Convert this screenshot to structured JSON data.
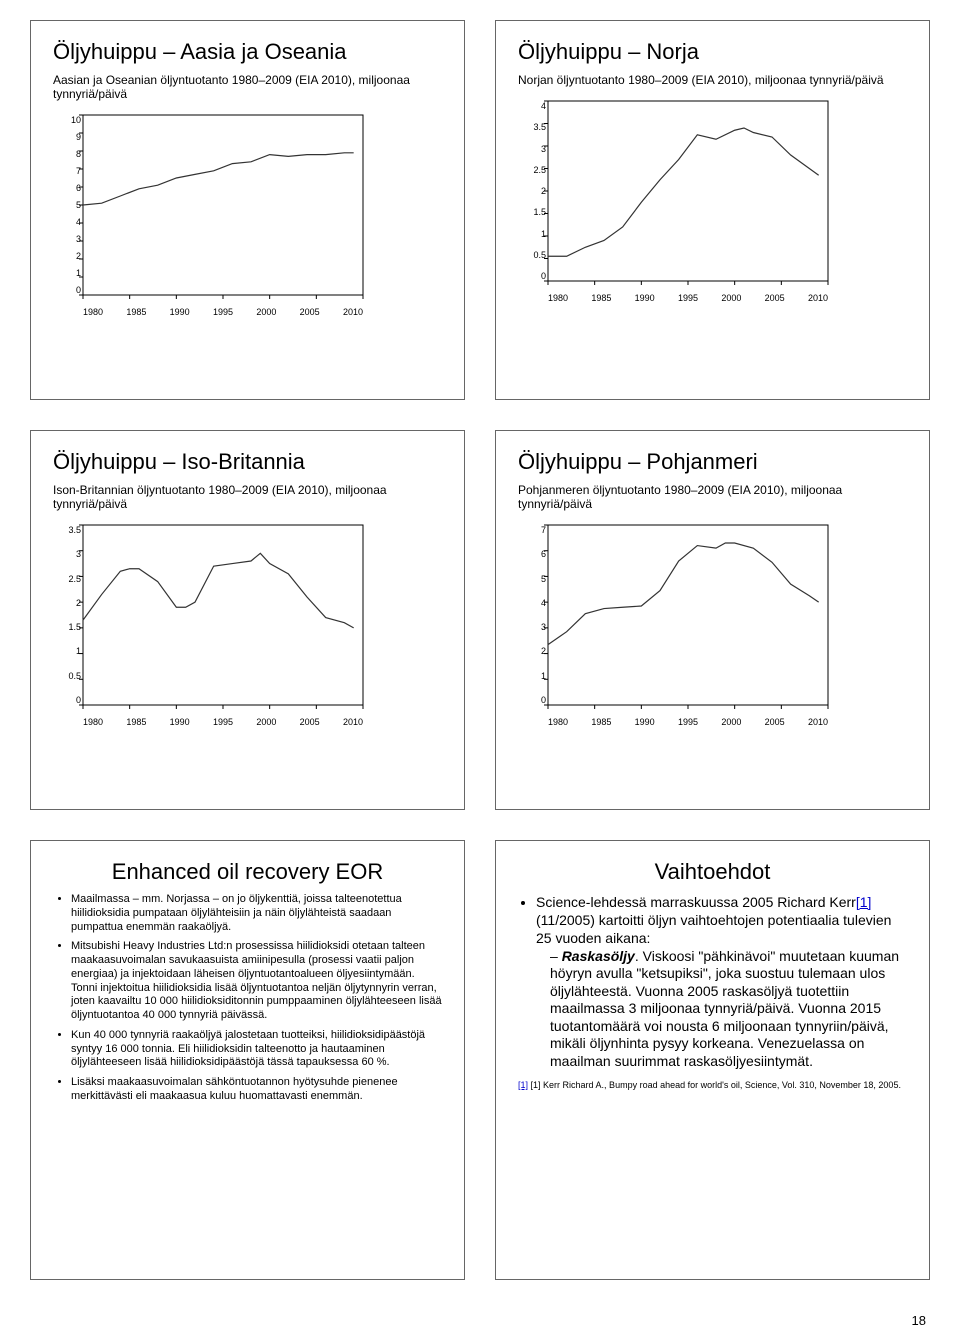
{
  "page_number": "18",
  "slides": {
    "asia": {
      "title": "Öljyhuippu – Aasia ja Oseania",
      "subtitle": "Aasian ja Oseanian öljyntuotanto 1980–2009 (EIA 2010), miljoonaa tynnyriä/päivä",
      "chart": {
        "type": "line",
        "xmin": 1980,
        "xmax": 2010,
        "ymin": 0,
        "ymax": 10,
        "xticks": [
          "1980",
          "1985",
          "1990",
          "1995",
          "2000",
          "2005",
          "2010"
        ],
        "yticks": [
          "0",
          "1",
          "2",
          "3",
          "4",
          "5",
          "6",
          "7",
          "8",
          "9",
          "10"
        ],
        "line_color": "#333333",
        "line_width": 1.2,
        "grid_color": "#000000",
        "background_color": "#ffffff",
        "tick_fontsize": 9,
        "data": [
          [
            1980,
            5.0
          ],
          [
            1982,
            5.1
          ],
          [
            1984,
            5.5
          ],
          [
            1986,
            5.9
          ],
          [
            1988,
            6.1
          ],
          [
            1990,
            6.5
          ],
          [
            1992,
            6.7
          ],
          [
            1994,
            6.9
          ],
          [
            1996,
            7.3
          ],
          [
            1998,
            7.4
          ],
          [
            2000,
            7.8
          ],
          [
            2002,
            7.7
          ],
          [
            2004,
            7.8
          ],
          [
            2006,
            7.8
          ],
          [
            2008,
            7.9
          ],
          [
            2009,
            7.9
          ]
        ]
      }
    },
    "norway": {
      "title": "Öljyhuippu – Norja",
      "subtitle": "Norjan öljyntuotanto 1980–2009 (EIA 2010), miljoonaa tynnyriä/päivä",
      "chart": {
        "type": "line",
        "xmin": 1980,
        "xmax": 2010,
        "ymin": 0,
        "ymax": 4,
        "xticks": [
          "1980",
          "1985",
          "1990",
          "1995",
          "2000",
          "2005",
          "2010"
        ],
        "yticks": [
          "0",
          "0.5",
          "1",
          "1.5",
          "2",
          "2.5",
          "3",
          "3.5",
          "4"
        ],
        "line_color": "#333333",
        "line_width": 1.2,
        "grid_color": "#000000",
        "background_color": "#ffffff",
        "tick_fontsize": 9,
        "data": [
          [
            1980,
            0.55
          ],
          [
            1982,
            0.55
          ],
          [
            1984,
            0.75
          ],
          [
            1986,
            0.9
          ],
          [
            1988,
            1.2
          ],
          [
            1990,
            1.75
          ],
          [
            1992,
            2.25
          ],
          [
            1994,
            2.7
          ],
          [
            1996,
            3.25
          ],
          [
            1998,
            3.15
          ],
          [
            2000,
            3.35
          ],
          [
            2001,
            3.4
          ],
          [
            2002,
            3.3
          ],
          [
            2004,
            3.2
          ],
          [
            2006,
            2.8
          ],
          [
            2008,
            2.5
          ],
          [
            2009,
            2.35
          ]
        ]
      }
    },
    "uk": {
      "title": "Öljyhuippu – Iso-Britannia",
      "subtitle": "Ison-Britannian öljyntuotanto 1980–2009 (EIA 2010), miljoonaa tynnyriä/päivä",
      "chart": {
        "type": "line",
        "xmin": 1980,
        "xmax": 2010,
        "ymin": 0,
        "ymax": 3.5,
        "xticks": [
          "1980",
          "1985",
          "1990",
          "1995",
          "2000",
          "2005",
          "2010"
        ],
        "yticks": [
          "0",
          "0.5",
          "1",
          "1.5",
          "2",
          "2.5",
          "3",
          "3.5"
        ],
        "line_color": "#333333",
        "line_width": 1.2,
        "grid_color": "#000000",
        "background_color": "#ffffff",
        "tick_fontsize": 9,
        "data": [
          [
            1980,
            1.65
          ],
          [
            1982,
            2.15
          ],
          [
            1984,
            2.6
          ],
          [
            1985,
            2.65
          ],
          [
            1986,
            2.65
          ],
          [
            1988,
            2.4
          ],
          [
            1990,
            1.9
          ],
          [
            1991,
            1.9
          ],
          [
            1992,
            2.0
          ],
          [
            1994,
            2.7
          ],
          [
            1996,
            2.75
          ],
          [
            1998,
            2.8
          ],
          [
            1999,
            2.95
          ],
          [
            2000,
            2.75
          ],
          [
            2002,
            2.55
          ],
          [
            2004,
            2.1
          ],
          [
            2006,
            1.7
          ],
          [
            2008,
            1.6
          ],
          [
            2009,
            1.5
          ]
        ]
      }
    },
    "northsea": {
      "title": "Öljyhuippu – Pohjanmeri",
      "subtitle": "Pohjanmeren öljyntuotanto 1980–2009 (EIA 2010), miljoonaa tynnyriä/päivä",
      "chart": {
        "type": "line",
        "xmin": 1980,
        "xmax": 2010,
        "ymin": 0,
        "ymax": 7,
        "xticks": [
          "1980",
          "1985",
          "1990",
          "1995",
          "2000",
          "2005",
          "2010"
        ],
        "yticks": [
          "0",
          "1",
          "2",
          "3",
          "4",
          "5",
          "6",
          "7"
        ],
        "line_color": "#333333",
        "line_width": 1.2,
        "grid_color": "#000000",
        "background_color": "#ffffff",
        "tick_fontsize": 9,
        "data": [
          [
            1980,
            2.35
          ],
          [
            1982,
            2.85
          ],
          [
            1984,
            3.55
          ],
          [
            1986,
            3.75
          ],
          [
            1988,
            3.8
          ],
          [
            1990,
            3.85
          ],
          [
            1992,
            4.45
          ],
          [
            1994,
            5.6
          ],
          [
            1996,
            6.2
          ],
          [
            1998,
            6.1
          ],
          [
            1999,
            6.3
          ],
          [
            2000,
            6.3
          ],
          [
            2002,
            6.1
          ],
          [
            2004,
            5.55
          ],
          [
            2006,
            4.7
          ],
          [
            2008,
            4.25
          ],
          [
            2009,
            4.0
          ]
        ]
      }
    },
    "eor": {
      "title": "Enhanced oil recovery EOR",
      "bullets": [
        "Maailmassa – mm. Norjassa – on jo öljykenttiä, joissa talteenotettua hiilidioksidia pumpataan öljylähteisiin ja näin öljylähteistä saadaan pumpattua enemmän raakaöljyä.",
        "Mitsubishi Heavy Industries Ltd:n prosessissa hiilidioksidi otetaan talteen maakaasuvoimalan savukaasuista amiinipesulla (prosessi vaatii paljon energiaa) ja injektoidaan läheisen öljyntuotantoalueen öljyesiintymään. Tonni injektoitua hiilidioksidia lisää öljyntuotantoa neljän öljytynnyrin verran, joten kaavailtu 10 000 hiilidioksiditonnin pumppaaminen öljylähteeseen lisää öljyntuotantoa 40 000 tynnyriä päivässä.",
        "Kun 40 000 tynnyriä raakaöljyä jalostetaan tuotteiksi, hiilidioksidipäästöjä syntyy 16 000 tonnia. Eli hiilidioksidin talteenotto ja hautaaminen öljylähteeseen lisää hiilidioksidipäästöjä tässä tapauksessa 60 %.",
        "Lisäksi maakaasuvoimalan sähköntuotannon hyötysuhde pienenee merkittävästi eli maakaasua kuluu huomattavasti enemmän."
      ]
    },
    "alternatives": {
      "title": "Vaihtoehdot",
      "lead_pre": "Science-lehdessä marraskuussa 2005 Richard Kerr",
      "lead_link": "[1]",
      "lead_post": " (11/2005) kartoitti öljyn vaihtoehtojen potentiaalia tulevien 25 vuoden aikana:",
      "sub_item_label": "Raskasöljy",
      "sub_item_text": ". Viskoosi \"pähkinävoi\" muutetaan kuuman höyryn avulla \"ketsupiksi\", joka suostuu tulemaan ulos öljylähteestä. Vuonna 2005 raskasöljyä tuotettiin maailmassa 3 miljoonaa tynnyriä/päivä. Vuonna 2015 tuotantomäärä voi nousta 6 miljoonaan tynnyriin/päivä, mikäli öljynhinta pysyy korkeana. Venezuelassa on maailman suurimmat raskasöljyesiintymät.",
      "reference": "[1] Kerr Richard A., Bumpy road ahead for world's oil, Science, Vol. 310, November 18, 2005.",
      "reference_link": "[1]"
    }
  }
}
